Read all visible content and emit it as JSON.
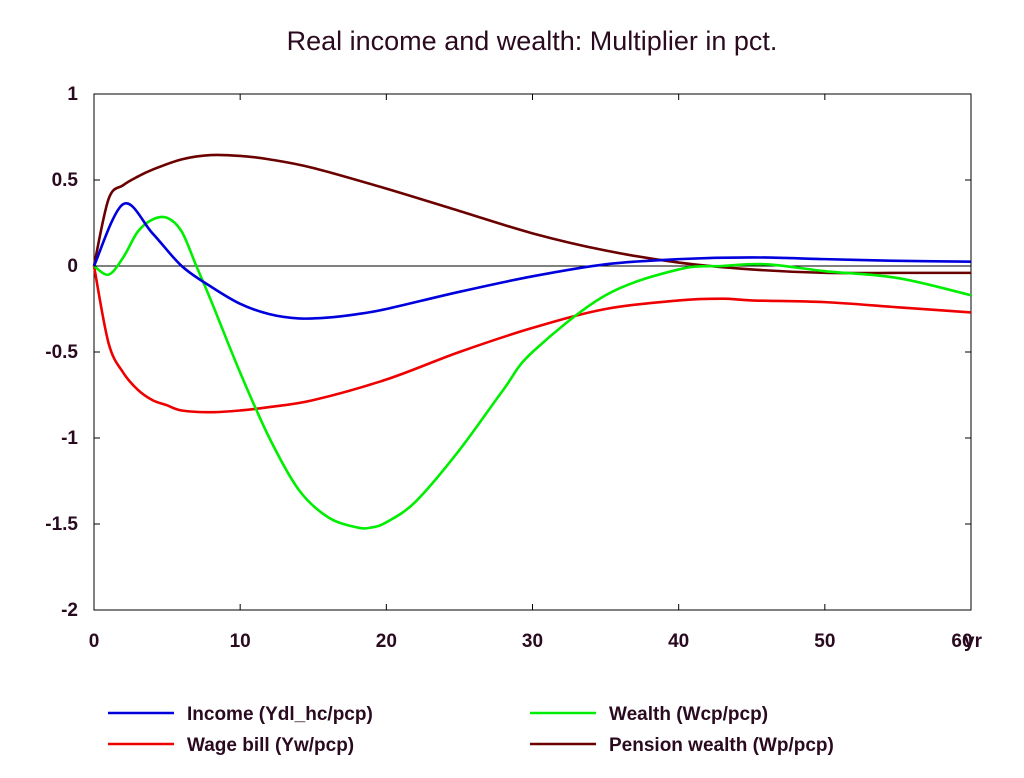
{
  "chart_data": {
    "type": "line",
    "title": "Real income and wealth: Multiplier in pct.",
    "xlabel": "",
    "ylabel": "",
    "x_unit_label": "yr",
    "xlim": [
      0,
      60
    ],
    "ylim": [
      -2,
      1
    ],
    "x_ticks": [
      0,
      10,
      20,
      30,
      40,
      50,
      60
    ],
    "y_ticks": [
      1,
      0.5,
      0,
      -0.5,
      -1,
      -1.5,
      -2
    ],
    "zero_line": true,
    "grid": false,
    "legend_position": "bottom",
    "series": [
      {
        "name": "Income (Ydl_hc/pcp)",
        "color": "#0000dd",
        "x": [
          0,
          2,
          4,
          6,
          8,
          10,
          12,
          14,
          16,
          18,
          20,
          25,
          30,
          35,
          40,
          45,
          50,
          55,
          60
        ],
        "values": [
          0,
          0.36,
          0.19,
          0.0,
          -0.12,
          -0.22,
          -0.28,
          -0.305,
          -0.3,
          -0.28,
          -0.25,
          -0.15,
          -0.06,
          0.01,
          0.04,
          0.05,
          0.04,
          0.03,
          0.025
        ]
      },
      {
        "name": "Wealth (Wcp/pcp)",
        "color": "#00ee00",
        "x": [
          0,
          1,
          2,
          3,
          4,
          5,
          6,
          7,
          8,
          10,
          12,
          14,
          16,
          18,
          19,
          20,
          22,
          25,
          28,
          30,
          35,
          40,
          43,
          46,
          50,
          55,
          60
        ],
        "values": [
          0,
          -0.05,
          0.05,
          0.2,
          0.27,
          0.28,
          0.2,
          0.0,
          -0.2,
          -0.62,
          -1.0,
          -1.3,
          -1.46,
          -1.52,
          -1.52,
          -1.49,
          -1.37,
          -1.07,
          -0.72,
          -0.5,
          -0.17,
          -0.02,
          0.0,
          0.01,
          -0.03,
          -0.07,
          -0.17
        ]
      },
      {
        "name": "Wage bill (Yw/pcp)",
        "color": "#ee0000",
        "x": [
          0,
          1,
          2,
          3,
          4,
          5,
          6,
          8,
          10,
          12,
          15,
          20,
          25,
          30,
          35,
          40,
          43,
          45,
          50,
          55,
          60
        ],
        "values": [
          0,
          -0.45,
          -0.62,
          -0.72,
          -0.78,
          -0.81,
          -0.84,
          -0.85,
          -0.84,
          -0.82,
          -0.78,
          -0.66,
          -0.5,
          -0.36,
          -0.25,
          -0.2,
          -0.19,
          -0.2,
          -0.21,
          -0.24,
          -0.27
        ]
      },
      {
        "name": "Pension wealth (Wp/pcp)",
        "color": "#6b0000",
        "x": [
          0,
          1,
          2,
          3,
          4,
          6,
          8,
          10,
          12,
          15,
          20,
          25,
          30,
          35,
          40,
          45,
          50,
          55,
          60
        ],
        "values": [
          0,
          0.39,
          0.47,
          0.52,
          0.56,
          0.62,
          0.645,
          0.64,
          0.62,
          0.57,
          0.45,
          0.32,
          0.19,
          0.09,
          0.02,
          -0.02,
          -0.04,
          -0.04,
          -0.04
        ]
      }
    ]
  }
}
